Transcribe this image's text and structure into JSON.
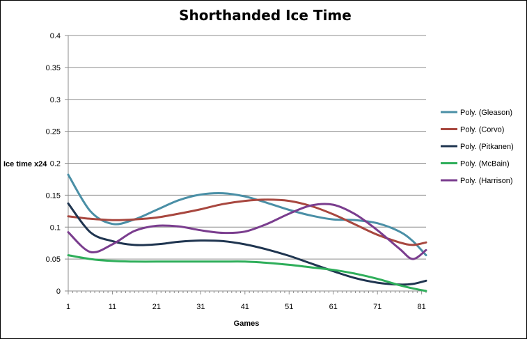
{
  "chart_data": {
    "type": "line",
    "title": "Shorthanded Ice Time",
    "xlabel": "Games",
    "ylabel": "Ice time x24",
    "xlim": [
      1,
      82
    ],
    "ylim": [
      0,
      0.4
    ],
    "x_ticks": [
      1,
      11,
      21,
      31,
      41,
      51,
      61,
      71,
      81
    ],
    "y_ticks": [
      0,
      0.05,
      0.1,
      0.15,
      0.2,
      0.25,
      0.3,
      0.35,
      0.4
    ],
    "y_tick_labels": [
      "0",
      "0.05",
      "0.1",
      "0.15",
      "0.2",
      "0.25",
      "0.3",
      "0.35",
      "0.4"
    ],
    "grid": "horizontal",
    "legend_position": "right",
    "x": [
      1,
      6,
      11,
      16,
      21,
      26,
      31,
      36,
      41,
      46,
      51,
      56,
      61,
      66,
      71,
      76,
      79,
      82
    ],
    "series": [
      {
        "name": "Poly. (Gleason)",
        "color": "#4A8FA6",
        "values": [
          0.182,
          0.125,
          0.105,
          0.112,
          0.127,
          0.142,
          0.151,
          0.153,
          0.148,
          0.138,
          0.127,
          0.118,
          0.112,
          0.111,
          0.106,
          0.093,
          0.078,
          0.056
        ]
      },
      {
        "name": "Poly. (Corvo)",
        "color": "#A8473F",
        "values": [
          0.117,
          0.113,
          0.111,
          0.112,
          0.115,
          0.121,
          0.128,
          0.136,
          0.141,
          0.143,
          0.141,
          0.133,
          0.12,
          0.104,
          0.088,
          0.076,
          0.072,
          0.076
        ]
      },
      {
        "name": "Poly. (Pitkanen)",
        "color": "#1F3550",
        "values": [
          0.137,
          0.092,
          0.078,
          0.072,
          0.073,
          0.077,
          0.079,
          0.078,
          0.073,
          0.065,
          0.055,
          0.043,
          0.031,
          0.02,
          0.013,
          0.01,
          0.011,
          0.016
        ]
      },
      {
        "name": "Poly. (McBain)",
        "color": "#2EAE5A",
        "values": [
          0.056,
          0.05,
          0.047,
          0.046,
          0.046,
          0.046,
          0.046,
          0.046,
          0.046,
          0.044,
          0.041,
          0.037,
          0.033,
          0.027,
          0.019,
          0.009,
          0.004,
          0.0
        ]
      },
      {
        "name": "Poly. (Harrison)",
        "color": "#7A3D8E",
        "values": [
          0.092,
          0.061,
          0.073,
          0.094,
          0.102,
          0.101,
          0.095,
          0.091,
          0.093,
          0.105,
          0.121,
          0.134,
          0.135,
          0.12,
          0.095,
          0.066,
          0.05,
          0.064
        ]
      }
    ]
  }
}
